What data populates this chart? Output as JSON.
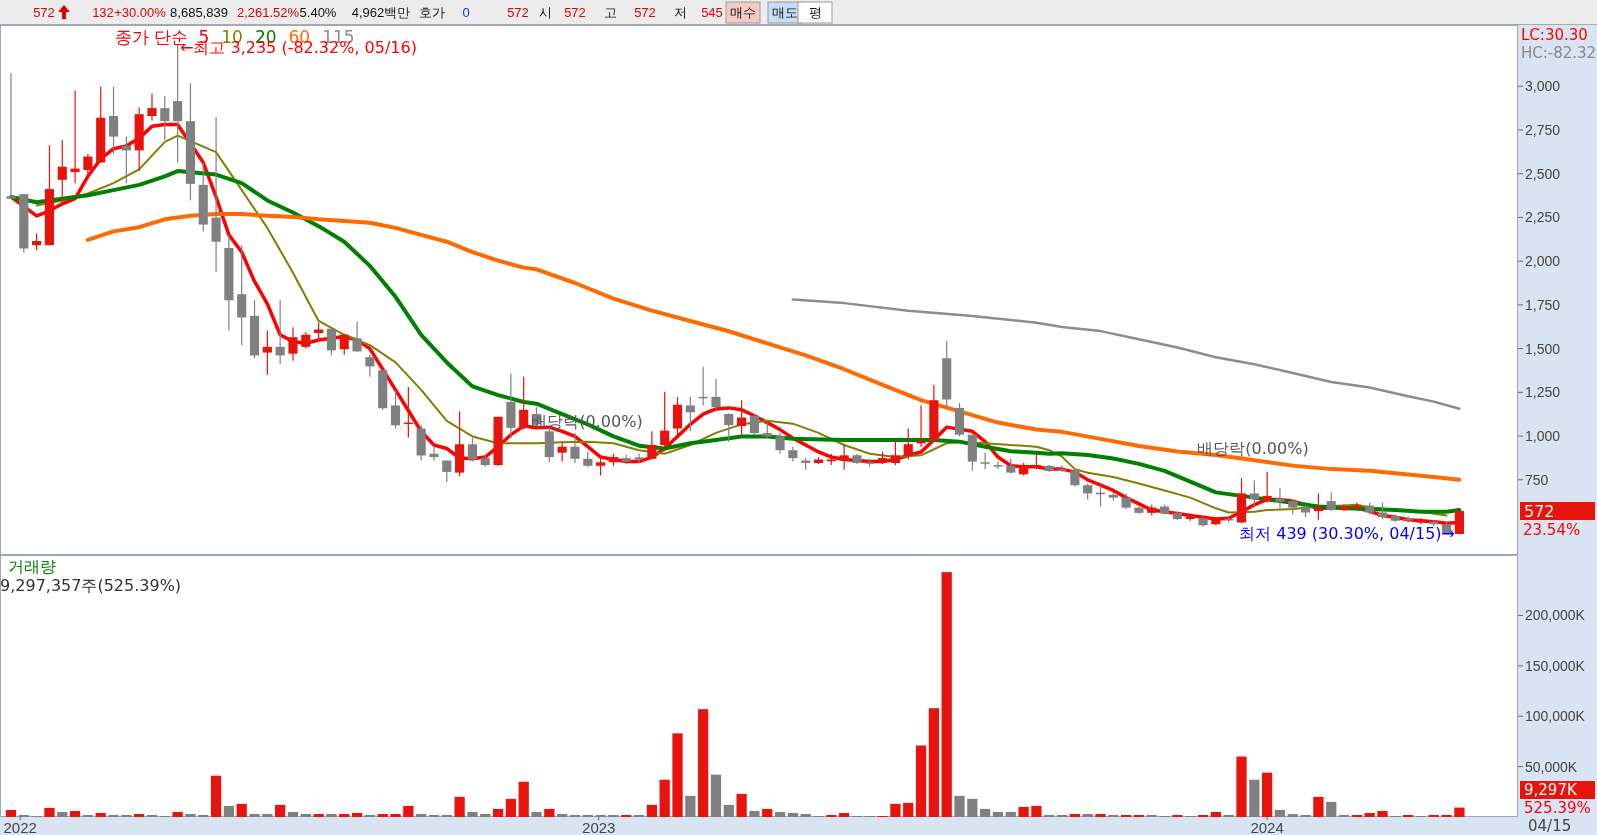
{
  "chart_data": [
    {
      "type": "other",
      "annotations": [
        "572",
        "132",
        "+30.00%",
        "8,685,839",
        "2,261.52%",
        "5.40%",
        "4,962백만",
        "호가",
        "0",
        "572",
        "시",
        "572",
        "고",
        "572",
        "저",
        "545",
        "매수",
        "매도",
        "평"
      ]
    },
    {
      "type": "candlestick",
      "legend_title": "종가 단순",
      "legend": "top left",
      "tick_labels": "y",
      "xlim": [
        "2022-02-08",
        "2024-05-17"
      ],
      "ylim": [
        320,
        3350
      ],
      "yticks": [
        750,
        {
          "value": 1000,
          "label": "1,000"
        },
        {
          "value": 1250,
          "label": "1,250"
        },
        {
          "value": 1500,
          "label": "1,500"
        },
        {
          "value": 1750,
          "label": "1,750"
        },
        {
          "value": 2000,
          "label": "2,000"
        },
        {
          "value": 2250,
          "label": "2,250"
        },
        {
          "value": 2500,
          "label": "2,500"
        },
        {
          "value": 2750,
          "label": "2,750"
        },
        {
          "value": 3000,
          "label": "3,000"
        }
      ],
      "annotations": [
        "←최고 3,235 (-82.32%, 05/16)",
        "최저 439 (30.30%, 04/15)→",
        "배당락(0.00%)",
        "배당락(0.00%)",
        "LC:30.30",
        "HC:-82.32",
        "572",
        "23.54%"
      ],
      "series": [
        {
          "type": "line",
          "name": "5",
          "color": "#ff0000",
          "x": [
            "2022-02-14",
            "2022-02-28",
            "2022-03-07",
            "2022-03-14",
            "2022-03-21",
            "2022-03-28",
            "2022-04-04",
            "2022-04-11",
            "2022-04-18",
            "2022-04-25",
            "2022-05-02",
            "2022-05-09",
            "2022-05-16",
            "2022-05-30",
            "2022-06-06",
            "2022-06-13",
            "2022-06-20",
            "2022-06-27",
            "2022-07-04",
            "2022-07-11",
            "2022-07-18",
            "2022-07-25",
            "2022-08-01",
            "2022-08-08",
            "2022-08-15",
            "2022-08-22",
            "2022-08-29",
            "2022-09-05",
            "2022-09-12",
            "2022-09-19",
            "2022-09-26",
            "2022-10-03",
            "2022-10-10",
            "2022-10-17",
            "2022-10-24",
            "2022-10-31",
            "2022-11-07",
            "2022-11-14",
            "2022-11-21",
            "2022-11-28",
            "2022-12-05",
            "2022-12-12",
            "2022-12-19",
            "2022-12-26",
            "2023-01-02",
            "2023-01-09",
            "2023-01-16",
            "2023-01-23",
            "2023-01-30",
            "2023-02-06",
            "2023-02-13",
            "2023-02-20",
            "2023-02-27",
            "2023-03-06",
            "2023-03-13",
            "2023-03-20",
            "2023-03-27",
            "2023-04-03",
            "2023-04-10",
            "2023-04-17",
            "2023-04-24",
            "2023-05-01",
            "2023-05-08",
            "2023-05-15",
            "2023-05-22",
            "2023-05-29",
            "2023-06-05",
            "2023-06-12",
            "2023-06-19",
            "2023-06-26",
            "2023-07-03",
            "2023-07-10",
            "2023-07-24",
            "2023-07-31",
            "2023-08-07",
            "2023-08-14",
            "2023-08-21",
            "2023-08-28",
            "2023-09-04",
            "2023-09-11",
            "2023-09-18",
            "2023-09-25",
            "2023-10-02",
            "2023-10-09",
            "2023-10-16",
            "2023-10-23",
            "2023-10-30",
            "2023-11-06",
            "2023-11-13",
            "2023-11-20",
            "2023-11-27",
            "2023-12-04",
            "2023-12-11",
            "2023-12-18",
            "2023-12-25",
            "2024-01-01",
            "2024-01-08",
            "2024-01-15",
            "2024-01-22",
            "2024-01-29",
            "2024-02-05",
            "2024-02-12",
            "2024-02-19",
            "2024-02-26",
            "2024-03-04",
            "2024-03-11",
            "2024-03-18",
            "2024-03-25",
            "2024-04-01",
            "2024-04-08",
            "2024-04-15"
          ],
          "values": [
            2367,
            2259,
            2288,
            2328,
            2357,
            2485,
            2584,
            2643,
            2659,
            2702,
            2771,
            2781,
            2781,
            2564,
            2367,
            2150,
            2052,
            1884,
            1756,
            1579,
            1540,
            1530,
            1549,
            1559,
            1569,
            1549,
            1500,
            1382,
            1264,
            1146,
            1027,
            949,
            929,
            874,
            870,
            880,
            939,
            1008,
            1057,
            1047,
            1051,
            1027,
            998,
            939,
            880,
            866,
            854,
            854,
            880,
            929,
            998,
            1067,
            1126,
            1155,
            1161,
            1150,
            1116,
            1077,
            1037,
            988,
            949,
            909,
            880,
            866,
            860,
            854,
            854,
            866,
            890,
            909,
            978,
            1051,
            1027,
            968,
            880,
            830,
            825,
            825,
            811,
            811,
            794,
            750,
            719,
            689,
            648,
            612,
            577,
            567,
            557,
            546,
            536,
            526,
            530,
            567,
            607,
            638,
            638,
            628,
            607,
            587,
            587,
            591,
            587,
            571,
            546,
            536,
            522,
            516,
            510,
            502,
            506
          ]
        },
        {
          "type": "line",
          "name": "10",
          "color": "#808000",
          "x": [
            "2022-02-28",
            "2022-03-14",
            "2022-03-28",
            "2022-04-11",
            "2022-04-25",
            "2022-05-09",
            "2022-05-16",
            "2022-06-06",
            "2022-06-20",
            "2022-07-04",
            "2022-07-18",
            "2022-08-01",
            "2022-08-15",
            "2022-08-29",
            "2022-09-12",
            "2022-09-26",
            "2022-10-10",
            "2022-10-24",
            "2022-11-07",
            "2022-11-21",
            "2022-11-28",
            "2022-12-12",
            "2022-12-26",
            "2023-01-09",
            "2023-01-23",
            "2023-02-06",
            "2023-02-20",
            "2023-03-06",
            "2023-03-20",
            "2023-04-03",
            "2023-04-17",
            "2023-05-01",
            "2023-05-15",
            "2023-05-29",
            "2023-06-12",
            "2023-06-26",
            "2023-07-10",
            "2023-07-17",
            "2023-07-31",
            "2023-08-14",
            "2023-08-28",
            "2023-09-04",
            "2023-09-11",
            "2023-09-18",
            "2023-09-25",
            "2023-10-09",
            "2023-10-23",
            "2023-11-06",
            "2023-11-20",
            "2023-12-04",
            "2023-12-11",
            "2023-12-25",
            "2024-01-01",
            "2024-01-15",
            "2024-01-29",
            "2024-02-12",
            "2024-02-19",
            "2024-02-26",
            "2024-03-11",
            "2024-03-25",
            "2024-04-08"
          ],
          "values": [
            2318,
            2347,
            2387,
            2446,
            2525,
            2682,
            2718,
            2623,
            2406,
            2190,
            1934,
            1658,
            1579,
            1520,
            1421,
            1264,
            1087,
            998,
            959,
            959,
            959,
            964,
            968,
            959,
            919,
            899,
            949,
            1018,
            1067,
            1087,
            1071,
            1018,
            949,
            899,
            880,
            890,
            959,
            968,
            959,
            949,
            939,
            919,
            882,
            811,
            790,
            766,
            729,
            689,
            648,
            587,
            563,
            567,
            577,
            583,
            597,
            603,
            607,
            591,
            577,
            567,
            546
          ]
        },
        {
          "type": "line",
          "name": "20",
          "color": "#008000",
          "x": [
            "2022-02-14",
            "2022-02-28",
            "2022-03-14",
            "2022-03-28",
            "2022-04-11",
            "2022-04-25",
            "2022-05-09",
            "2022-05-16",
            "2022-06-06",
            "2022-06-20",
            "2022-07-04",
            "2022-07-18",
            "2022-08-01",
            "2022-08-15",
            "2022-08-29",
            "2022-09-12",
            "2022-09-26",
            "2022-10-10",
            "2022-10-24",
            "2022-11-07",
            "2022-11-21",
            "2022-11-28",
            "2022-12-12",
            "2022-12-26",
            "2023-01-09",
            "2023-01-23",
            "2023-02-06",
            "2023-02-20",
            "2023-03-06",
            "2023-03-20",
            "2023-04-03",
            "2023-04-17",
            "2023-05-15",
            "2023-06-12",
            "2023-07-03",
            "2023-07-17",
            "2023-07-31",
            "2023-08-14",
            "2023-08-28",
            "2023-09-04",
            "2023-09-11",
            "2023-09-25",
            "2023-10-09",
            "2023-10-23",
            "2023-11-06",
            "2023-11-20",
            "2023-12-04",
            "2024-01-01",
            "2024-01-15",
            "2024-01-29",
            "2024-02-12",
            "2024-02-26",
            "2024-03-11",
            "2024-03-25",
            "2024-04-08",
            "2024-04-15"
          ],
          "values": [
            2367,
            2337,
            2357,
            2377,
            2406,
            2436,
            2485,
            2515,
            2495,
            2446,
            2347,
            2278,
            2200,
            2111,
            1973,
            1796,
            1579,
            1421,
            1284,
            1234,
            1195,
            1185,
            1126,
            1067,
            998,
            945,
            929,
            959,
            978,
            998,
            998,
            984,
            978,
            978,
            978,
            968,
            939,
            913,
            905,
            899,
            902,
            892,
            872,
            841,
            801,
            740,
            678,
            638,
            618,
            597,
            587,
            583,
            577,
            567,
            567,
            577
          ]
        },
        {
          "type": "line",
          "name": "60",
          "color": "#ff6a00",
          "x": [
            "2022-03-28",
            "2022-04-11",
            "2022-04-25",
            "2022-05-09",
            "2022-05-23",
            "2022-06-06",
            "2022-06-20",
            "2022-07-04",
            "2022-07-18",
            "2022-08-01",
            "2022-08-15",
            "2022-08-29",
            "2022-09-12",
            "2022-09-26",
            "2022-10-10",
            "2022-10-24",
            "2022-11-07",
            "2022-11-21",
            "2022-11-28",
            "2022-12-19",
            "2023-01-09",
            "2023-01-30",
            "2023-02-20",
            "2023-03-13",
            "2023-04-03",
            "2023-04-24",
            "2023-05-15",
            "2023-06-05",
            "2023-06-26",
            "2023-08-07",
            "2023-08-28",
            "2023-09-04",
            "2023-09-11",
            "2023-10-02",
            "2023-10-23",
            "2023-11-13",
            "2023-12-04",
            "2023-12-25",
            "2024-01-15",
            "2024-02-05",
            "2024-02-26",
            "2024-03-18",
            "2024-04-01",
            "2024-04-15"
          ],
          "values": [
            2121,
            2170,
            2194,
            2239,
            2259,
            2269,
            2269,
            2259,
            2253,
            2239,
            2229,
            2219,
            2190,
            2150,
            2111,
            2052,
            2003,
            1963,
            1953,
            1875,
            1786,
            1717,
            1658,
            1599,
            1530,
            1461,
            1382,
            1293,
            1205,
            1077,
            1037,
            1030,
            1024,
            984,
            943,
            912,
            892,
            862,
            831,
            811,
            801,
            780,
            766,
            750
          ]
        },
        {
          "type": "line",
          "name": "115",
          "color": "#8c8c8c",
          "x": [
            "2023-04-17",
            "2023-05-15",
            "2023-06-19",
            "2023-07-24",
            "2023-08-28",
            "2023-09-11",
            "2023-10-02",
            "2023-10-23",
            "2023-11-13",
            "2023-12-04",
            "2023-12-25",
            "2024-01-15",
            "2024-02-05",
            "2024-02-26",
            "2024-03-18",
            "2024-04-01",
            "2024-04-15"
          ],
          "values": [
            1780,
            1760,
            1717,
            1687,
            1648,
            1624,
            1600,
            1553,
            1506,
            1451,
            1411,
            1360,
            1309,
            1278,
            1228,
            1197,
            1156
          ]
        },
        {
          "type": "candlestick",
          "color": "#e6140c",
          "x": [
            "2022-02-28",
            "2022-03-07",
            "2022-03-14",
            "2022-03-21",
            "2022-03-28",
            "2022-04-04",
            "2022-04-25",
            "2022-05-02",
            "2022-07-04",
            "2022-07-18",
            "2022-07-25",
            "2022-08-01",
            "2022-08-15",
            "2022-09-19",
            "2022-10-17",
            "2022-11-07",
            "2022-11-21",
            "2022-12-12",
            "2023-01-02",
            "2023-01-09",
            "2023-01-30",
            "2023-02-06",
            "2023-02-13",
            "2023-03-20",
            "2023-05-01",
            "2023-05-08",
            "2023-05-15",
            "2023-06-05",
            "2023-06-12",
            "2023-06-19",
            "2023-06-26",
            "2023-07-03",
            "2023-08-21",
            "2023-08-28",
            "2023-10-30",
            "2023-11-20",
            "2023-12-04",
            "2023-12-18",
            "2024-01-01",
            "2024-01-29",
            "2024-02-12",
            "2024-02-19",
            "2024-03-25",
            "2024-04-15"
          ],
          "ohlc": [
            [
              2091,
              2160,
              2062,
              2115
            ],
            [
              2091,
              2663,
              2091,
              2412
            ],
            [
              2465,
              2692,
              2328,
              2540
            ],
            [
              2509,
              2974,
              2446,
              2529
            ],
            [
              2521,
              2613,
              2485,
              2598
            ],
            [
              2564,
              2997,
              2564,
              2820
            ],
            [
              2633,
              2879,
              2515,
              2840
            ],
            [
              2830,
              2958,
              2804,
              2875
            ],
            [
              1477,
              1603,
              1349,
              1510
            ],
            [
              1471,
              1622,
              1431,
              1565
            ],
            [
              1510,
              1593,
              1500,
              1579
            ],
            [
              1589,
              1648,
              1559,
              1609
            ],
            [
              1496,
              1579,
              1465,
              1579
            ],
            [
              1070,
              1280,
              992,
              1077
            ],
            [
              791,
              1142,
              771,
              953
            ],
            [
              834,
              1110,
              830,
              1110
            ],
            [
              1051,
              1339,
              1037,
              1150
            ],
            [
              905,
              959,
              854,
              939
            ],
            [
              830,
              870,
              775,
              850
            ],
            [
              850,
              899,
              830,
              880
            ],
            [
              870,
              1027,
              866,
              949
            ],
            [
              949,
              1254,
              913,
              1031
            ],
            [
              1043,
              1224,
              988,
              1179
            ],
            [
              1057,
              1205,
              998,
              1106
            ],
            [
              846,
              880,
              840,
              866
            ],
            [
              856,
              899,
              834,
              866
            ],
            [
              860,
              953,
              807,
              890
            ],
            [
              850,
              909,
              840,
              874
            ],
            [
              846,
              978,
              834,
              890
            ],
            [
              886,
              1043,
              866,
              953
            ],
            [
              958,
              1175,
              939,
              972
            ],
            [
              972,
              1293,
              968,
              1205
            ],
            [
              781,
              846,
              775,
              830
            ],
            [
              820,
              899,
              811,
              834
            ],
            [
              561,
              607,
              546,
              591
            ],
            [
              526,
              557,
              516,
              540
            ],
            [
              496,
              536,
              490,
              526
            ],
            [
              506,
              760,
              502,
              672
            ],
            [
              628,
              795,
              618,
              658
            ],
            [
              571,
              672,
              522,
              591
            ],
            [
              577,
              607,
              571,
              597
            ],
            [
              587,
              618,
              577,
              603
            ],
            [
              506,
              530,
              496,
              522
            ],
            [
              440,
              572,
              439,
              572
            ]
          ]
        },
        {
          "type": "candlestick",
          "color": "#808080",
          "x": [
            "2022-02-14",
            "2022-02-21",
            "2022-04-11",
            "2022-04-18",
            "2022-05-09",
            "2022-05-16",
            "2022-05-23",
            "2022-05-30",
            "2022-06-06",
            "2022-06-13",
            "2022-06-20",
            "2022-06-27",
            "2022-07-11",
            "2022-08-08",
            "2022-08-22",
            "2022-08-29",
            "2022-09-05",
            "2022-09-12",
            "2022-09-26",
            "2022-10-03",
            "2022-10-10",
            "2022-10-24",
            "2022-10-31",
            "2022-11-14",
            "2022-11-28",
            "2022-12-05",
            "2022-12-19",
            "2022-12-26",
            "2023-01-16",
            "2023-01-23",
            "2023-02-20",
            "2023-02-27",
            "2023-03-06",
            "2023-03-13",
            "2023-03-27",
            "2023-04-03",
            "2023-04-10",
            "2023-04-17",
            "2023-04-24",
            "2023-05-22",
            "2023-05-29",
            "2023-07-10",
            "2023-07-17",
            "2023-07-24",
            "2023-07-31",
            "2023-08-07",
            "2023-08-14",
            "2023-09-04",
            "2023-09-11",
            "2023-09-18",
            "2023-09-25",
            "2023-10-02",
            "2023-10-09",
            "2023-10-16",
            "2023-10-23",
            "2023-11-06",
            "2023-11-13",
            "2023-11-27",
            "2023-12-11",
            "2023-12-25",
            "2024-01-08",
            "2024-01-15",
            "2024-01-22",
            "2024-02-05",
            "2024-02-26",
            "2024-03-04",
            "2024-03-11",
            "2024-03-18",
            "2024-04-01",
            "2024-04-08"
          ],
          "ohlc": [
            [
              2371,
              3076,
              2357,
              2357
            ],
            [
              2383,
              2383,
              2048,
              2072
            ],
            [
              2830,
              2997,
              2613,
              2712
            ],
            [
              2659,
              2712,
              2446,
              2633
            ],
            [
              2875,
              2944,
              2692,
              2800
            ],
            [
              2915,
              3235,
              2564,
              2800
            ],
            [
              2800,
              3017,
              2347,
              2442
            ],
            [
              2436,
              2564,
              2170,
              2209
            ],
            [
              2249,
              2824,
              1938,
              2111
            ],
            [
              2075,
              2150,
              1603,
              1776
            ],
            [
              1811,
              2091,
              1520,
              1678
            ],
            [
              1687,
              1776,
              1445,
              1461
            ],
            [
              1510,
              1776,
              1412,
              1461
            ],
            [
              1614,
              1614,
              1461,
              1490
            ],
            [
              1559,
              1654,
              1484,
              1484
            ],
            [
              1451,
              1465,
              1339,
              1398
            ],
            [
              1376,
              1382,
              1150,
              1159
            ],
            [
              1175,
              1260,
              1043,
              1061
            ],
            [
              1043,
              1063,
              860,
              889
            ],
            [
              899,
              945,
              860,
              880
            ],
            [
              860,
              860,
              736,
              795
            ],
            [
              953,
              988,
              854,
              866
            ],
            [
              874,
              889,
              824,
              834
            ],
            [
              1195,
              1358,
              988,
              1047
            ],
            [
              1126,
              1165,
              1055,
              1067
            ],
            [
              1027,
              1047,
              850,
              880
            ],
            [
              939,
              1018,
              846,
              870
            ],
            [
              870,
              909,
              821,
              830
            ],
            [
              874,
              893,
              840,
              854
            ],
            [
              878,
              899,
              846,
              866
            ],
            [
              1175,
              1224,
              1027,
              1136
            ],
            [
              1224,
              1396,
              1175,
              1220
            ],
            [
              1224,
              1327,
              1155,
              1165
            ],
            [
              1126,
              1130,
              968,
              1063
            ],
            [
              1116,
              1126,
              1008,
              1017
            ],
            [
              1017,
              1077,
              988,
              998
            ],
            [
              998,
              1017,
              899,
              919
            ],
            [
              919,
              939,
              854,
              874
            ],
            [
              860,
              874,
              807,
              846
            ],
            [
              890,
              899,
              840,
              846
            ],
            [
              850,
              870,
              826,
              846
            ],
            [
              1445,
              1544,
              1155,
              1209
            ],
            [
              1161,
              1189,
              998,
              1008
            ],
            [
              1008,
              1008,
              801,
              854
            ],
            [
              850,
              905,
              811,
              846
            ],
            [
              834,
              854,
              811,
              830
            ],
            [
              830,
              870,
              785,
              791
            ],
            [
              830,
              834,
              795,
              801
            ],
            [
              811,
              831,
              794,
              805
            ],
            [
              801,
              811,
              713,
              719
            ],
            [
              719,
              729,
              638,
              672
            ],
            [
              676,
              719,
              597,
              672
            ],
            [
              664,
              679,
              632,
              648
            ],
            [
              648,
              672,
              583,
              591
            ],
            [
              591,
              597,
              555,
              561
            ],
            [
              597,
              607,
              551,
              557
            ],
            [
              561,
              567,
              520,
              526
            ],
            [
              530,
              536,
              481,
              490
            ],
            [
              526,
              536,
              506,
              522
            ],
            [
              672,
              746,
              597,
              638
            ],
            [
              644,
              705,
              587,
              624
            ],
            [
              628,
              638,
              551,
              591
            ],
            [
              597,
              607,
              536,
              563
            ],
            [
              628,
              679,
              571,
              577
            ],
            [
              603,
              618,
              551,
              563
            ],
            [
              563,
              618,
              526,
              536
            ],
            [
              542,
              551,
              510,
              516
            ],
            [
              526,
              542,
              506,
              522
            ],
            [
              510,
              522,
              486,
              496
            ],
            [
              496,
              510,
              440,
              440
            ]
          ]
        }
      ]
    },
    {
      "type": "bar",
      "title": "거래량",
      "subtitle": "9,297,357주(525.39%)",
      "xlim": [
        "2022-02-08",
        "2024-05-17"
      ],
      "ylim": [
        0,
        260000
      ],
      "xticks": [
        {
          "value": "2022-02-19",
          "label": "2022"
        },
        {
          "value": "2023-01-01",
          "label": "2023"
        },
        {
          "value": "2024-01-01",
          "label": "2024"
        }
      ],
      "yticks": [
        {
          "value": 50000,
          "label": "50,000K"
        },
        {
          "value": 100000,
          "label": "100,000K"
        },
        {
          "value": 150000,
          "label": "150,000K"
        },
        {
          "value": 200000,
          "label": "200,000K"
        }
      ],
      "annotations": [
        "9,297K",
        "525.39%",
        "04/15"
      ],
      "x": [
        "2022-02-14",
        "2022-02-21",
        "2022-02-28",
        "2022-03-07",
        "2022-03-14",
        "2022-03-21",
        "2022-03-28",
        "2022-04-04",
        "2022-04-11",
        "2022-04-18",
        "2022-04-25",
        "2022-05-02",
        "2022-05-09",
        "2022-05-16",
        "2022-05-23",
        "2022-05-30",
        "2022-06-06",
        "2022-06-13",
        "2022-06-20",
        "2022-06-27",
        "2022-07-04",
        "2022-07-11",
        "2022-07-18",
        "2022-07-25",
        "2022-08-01",
        "2022-08-08",
        "2022-08-15",
        "2022-08-22",
        "2022-08-29",
        "2022-09-05",
        "2022-09-12",
        "2022-09-19",
        "2022-09-26",
        "2022-10-03",
        "2022-10-10",
        "2022-10-17",
        "2022-10-24",
        "2022-10-31",
        "2022-11-07",
        "2022-11-14",
        "2022-11-21",
        "2022-11-28",
        "2022-12-05",
        "2022-12-12",
        "2022-12-19",
        "2022-12-26",
        "2023-01-02",
        "2023-01-09",
        "2023-01-16",
        "2023-01-23",
        "2023-01-30",
        "2023-02-06",
        "2023-02-13",
        "2023-02-20",
        "2023-02-27",
        "2023-03-06",
        "2023-03-13",
        "2023-03-20",
        "2023-03-27",
        "2023-04-03",
        "2023-04-10",
        "2023-04-17",
        "2023-04-24",
        "2023-05-01",
        "2023-05-08",
        "2023-05-15",
        "2023-05-22",
        "2023-05-29",
        "2023-06-05",
        "2023-06-12",
        "2023-06-19",
        "2023-06-26",
        "2023-07-03",
        "2023-07-10",
        "2023-07-17",
        "2023-07-24",
        "2023-07-31",
        "2023-08-07",
        "2023-08-14",
        "2023-08-21",
        "2023-08-28",
        "2023-09-04",
        "2023-09-11",
        "2023-09-18",
        "2023-09-25",
        "2023-10-02",
        "2023-10-09",
        "2023-10-16",
        "2023-10-23",
        "2023-10-30",
        "2023-11-06",
        "2023-11-13",
        "2023-11-20",
        "2023-11-27",
        "2023-12-04",
        "2023-12-11",
        "2023-12-18",
        "2023-12-25",
        "2024-01-01",
        "2024-01-08",
        "2024-01-15",
        "2024-01-22",
        "2024-01-29",
        "2024-02-05",
        "2024-02-12",
        "2024-02-19",
        "2024-02-26",
        "2024-03-04",
        "2024-03-11",
        "2024-03-18",
        "2024-03-25",
        "2024-04-01",
        "2024-04-08",
        "2024-04-15"
      ],
      "values": [
        7000,
        2000,
        1000,
        9000,
        5000,
        6000,
        2000,
        4000,
        2000,
        2000,
        3000,
        2000,
        1000,
        5000,
        3000,
        2000,
        41000,
        11000,
        13000,
        3000,
        3000,
        12000,
        5000,
        3000,
        3000,
        3000,
        3000,
        4000,
        2000,
        3000,
        3000,
        11000,
        3000,
        2000,
        2000,
        20000,
        5000,
        3000,
        8000,
        18000,
        35000,
        5000,
        8000,
        3000,
        2000,
        2000,
        2000,
        2000,
        2000,
        2000,
        12000,
        37000,
        83000,
        21000,
        107000,
        42000,
        12000,
        23000,
        6000,
        8000,
        5000,
        4000,
        3000,
        1000,
        2000,
        4000,
        1000,
        1000,
        1000,
        13000,
        14000,
        71000,
        108000,
        243000,
        21000,
        18000,
        8000,
        5000,
        5000,
        10000,
        11000,
        2000,
        2000,
        3000,
        3000,
        3000,
        2000,
        2000,
        2000,
        2000,
        1000,
        2000,
        1000,
        2000,
        5000,
        2000,
        60000,
        37000,
        44000,
        7000,
        3000,
        2000,
        20000,
        15000,
        2000,
        2000,
        4000,
        6000,
        1000,
        2000,
        1000,
        2000,
        2000,
        9297
      ],
      "colors": [
        "#e6140c",
        "#808080",
        "#808080",
        "#e6140c",
        "#808080",
        "#e6140c",
        "#808080",
        "#e6140c",
        "#808080",
        "#808080",
        "#e6140c",
        "#808080",
        "#808080",
        "#e6140c",
        "#808080",
        "#808080",
        "#e6140c",
        "#808080",
        "#e6140c",
        "#808080",
        "#808080",
        "#e6140c",
        "#808080",
        "#808080",
        "#e6140c",
        "#808080",
        "#e6140c",
        "#e6140c",
        "#808080",
        "#e6140c",
        "#e6140c",
        "#e6140c",
        "#808080",
        "#808080",
        "#808080",
        "#e6140c",
        "#808080",
        "#808080",
        "#e6140c",
        "#e6140c",
        "#e6140c",
        "#808080",
        "#e6140c",
        "#808080",
        "#808080",
        "#808080",
        "#808080",
        "#808080",
        "#e6140c",
        "#808080",
        "#e6140c",
        "#e6140c",
        "#e6140c",
        "#808080",
        "#e6140c",
        "#808080",
        "#808080",
        "#e6140c",
        "#808080",
        "#e6140c",
        "#808080",
        "#808080",
        "#808080",
        "#808080",
        "#e6140c",
        "#e6140c",
        "#808080",
        "#808080",
        "#e6140c",
        "#e6140c",
        "#e6140c",
        "#e6140c",
        "#e6140c",
        "#e6140c",
        "#808080",
        "#808080",
        "#808080",
        "#808080",
        "#808080",
        "#e6140c",
        "#e6140c",
        "#808080",
        "#808080",
        "#e6140c",
        "#808080",
        "#e6140c",
        "#808080",
        "#e6140c",
        "#e6140c",
        "#808080",
        "#808080",
        "#e6140c",
        "#808080",
        "#e6140c",
        "#e6140c",
        "#808080",
        "#e6140c",
        "#808080",
        "#e6140c",
        "#808080",
        "#808080",
        "#808080",
        "#e6140c",
        "#808080",
        "#808080",
        "#e6140c",
        "#e6140c",
        "#e6140c",
        "#808080",
        "#e6140c",
        "#808080",
        "#e6140c",
        "#e6140c",
        "#e6140c"
      ]
    }
  ]
}
